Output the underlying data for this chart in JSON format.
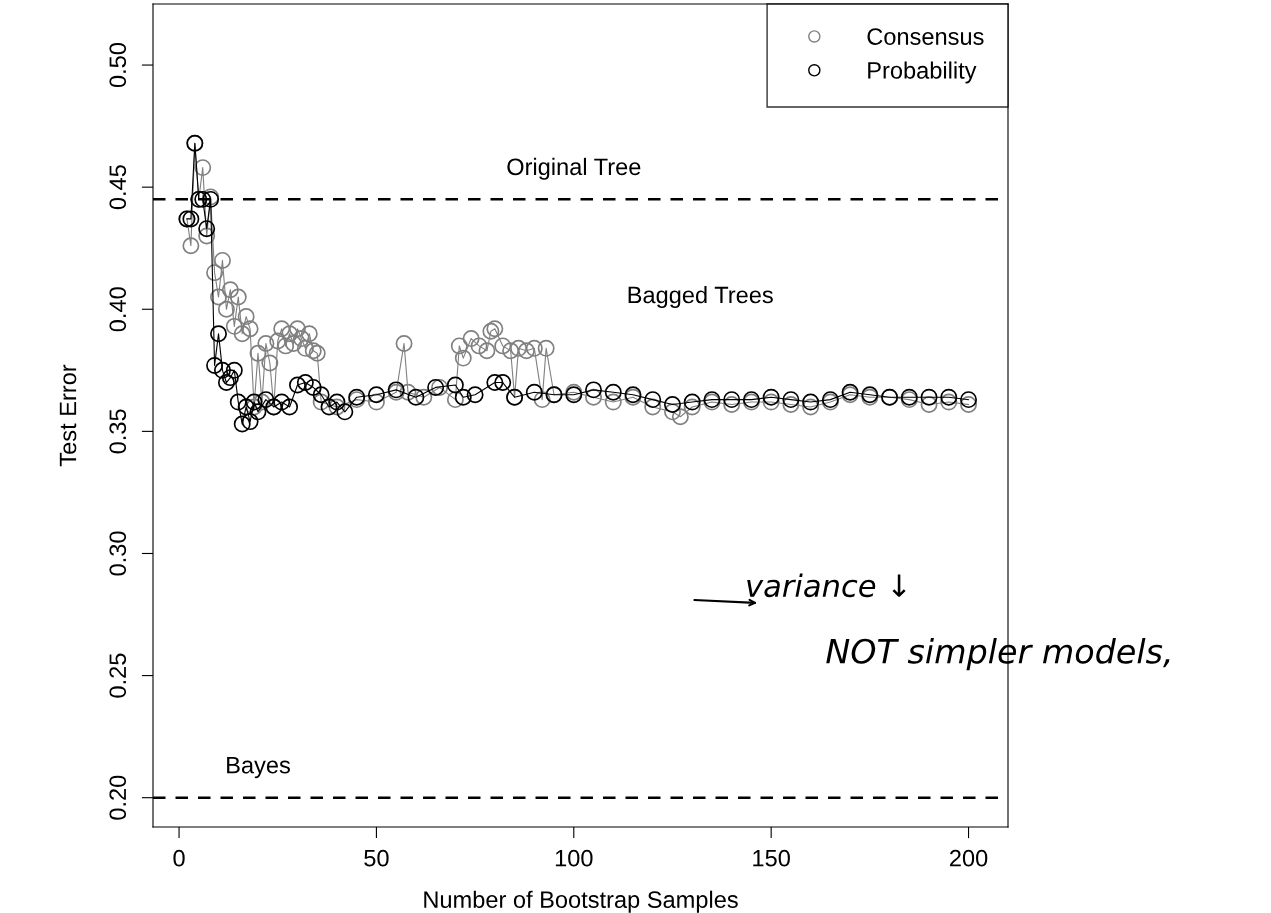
{
  "chart_data": {
    "type": "line",
    "xlabel": "Number of Bootstrap Samples",
    "ylabel": "Test Error",
    "xlim": [
      -6.6,
      210
    ],
    "ylim": [
      0.188,
      0.525
    ],
    "xticks": [
      0,
      50,
      100,
      150,
      200
    ],
    "yticks": [
      {
        "value": 0.2,
        "label": "0.20"
      },
      {
        "value": 0.25,
        "label": "0.25"
      },
      {
        "value": 0.3,
        "label": "0.30"
      },
      {
        "value": 0.35,
        "label": "0.35"
      },
      {
        "value": 0.4,
        "label": "0.40"
      },
      {
        "value": 0.45,
        "label": "0.45"
      },
      {
        "value": 0.5,
        "label": "0.50"
      }
    ],
    "grid": false,
    "legend": "top right",
    "marker": "circle",
    "line_style": "solid",
    "series": [
      {
        "name": "Consensus",
        "color": "#808080",
        "x": [
          2,
          3,
          4,
          5,
          6,
          7,
          8,
          9,
          10,
          11,
          12,
          13,
          14,
          15,
          16,
          17,
          18,
          19,
          20,
          21,
          22,
          23,
          24,
          25,
          26,
          27,
          28,
          29,
          30,
          31,
          32,
          33,
          34,
          35,
          36,
          40,
          45,
          50,
          55,
          57,
          58,
          62,
          66,
          70,
          71,
          72,
          74,
          76,
          78,
          79,
          80,
          82,
          84,
          85,
          86,
          88,
          90,
          92,
          93,
          95,
          100,
          105,
          110,
          115,
          120,
          125,
          127,
          130,
          135,
          140,
          145,
          150,
          155,
          160,
          165,
          170,
          175,
          180,
          185,
          190,
          195,
          200
        ],
        "values": [
          0.437,
          0.426,
          0.468,
          0.445,
          0.458,
          0.43,
          0.446,
          0.415,
          0.405,
          0.42,
          0.4,
          0.408,
          0.393,
          0.405,
          0.39,
          0.397,
          0.392,
          0.36,
          0.382,
          0.362,
          0.386,
          0.378,
          0.36,
          0.387,
          0.392,
          0.385,
          0.39,
          0.386,
          0.392,
          0.388,
          0.384,
          0.39,
          0.383,
          0.382,
          0.362,
          0.36,
          0.363,
          0.362,
          0.366,
          0.386,
          0.366,
          0.364,
          0.368,
          0.363,
          0.385,
          0.38,
          0.388,
          0.385,
          0.383,
          0.391,
          0.392,
          0.385,
          0.383,
          0.364,
          0.384,
          0.383,
          0.384,
          0.363,
          0.384,
          0.365,
          0.366,
          0.364,
          0.362,
          0.364,
          0.36,
          0.358,
          0.356,
          0.36,
          0.362,
          0.361,
          0.362,
          0.362,
          0.361,
          0.36,
          0.362,
          0.365,
          0.364,
          0.364,
          0.363,
          0.361,
          0.362,
          0.361
        ]
      },
      {
        "name": "Probability",
        "color": "#000000",
        "x": [
          2,
          3,
          4,
          5,
          6,
          7,
          8,
          9,
          10,
          11,
          12,
          13,
          14,
          15,
          16,
          17,
          18,
          19,
          20,
          22,
          24,
          26,
          28,
          30,
          32,
          34,
          36,
          38,
          40,
          42,
          45,
          50,
          55,
          60,
          65,
          70,
          72,
          75,
          80,
          82,
          85,
          90,
          95,
          100,
          105,
          110,
          115,
          120,
          125,
          130,
          135,
          140,
          145,
          150,
          155,
          160,
          165,
          170,
          175,
          180,
          185,
          190,
          195,
          200
        ],
        "values": [
          0.437,
          0.437,
          0.468,
          0.445,
          0.445,
          0.433,
          0.445,
          0.377,
          0.39,
          0.375,
          0.37,
          0.372,
          0.375,
          0.362,
          0.353,
          0.36,
          0.354,
          0.362,
          0.358,
          0.363,
          0.36,
          0.362,
          0.36,
          0.369,
          0.37,
          0.368,
          0.365,
          0.36,
          0.362,
          0.358,
          0.364,
          0.365,
          0.367,
          0.364,
          0.368,
          0.369,
          0.364,
          0.365,
          0.37,
          0.37,
          0.364,
          0.366,
          0.365,
          0.365,
          0.367,
          0.366,
          0.365,
          0.363,
          0.361,
          0.362,
          0.363,
          0.363,
          0.363,
          0.364,
          0.363,
          0.362,
          0.363,
          0.366,
          0.365,
          0.364,
          0.364,
          0.364,
          0.364,
          0.363
        ]
      }
    ],
    "ref_lines": [
      {
        "axis": "y",
        "value": 0.445,
        "label": "Original Tree",
        "color": "#000000",
        "line_style": "dashed"
      },
      {
        "axis": "y",
        "value": 0.2,
        "label": "Bayes",
        "color": "#000000",
        "line_style": "dashed"
      }
    ],
    "annotations": [
      "Bagged Trees",
      "variance ↓",
      "NOT simpler models,"
    ]
  }
}
